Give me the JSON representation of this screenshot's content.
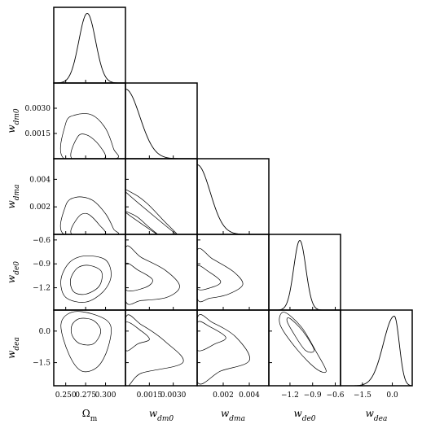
{
  "chart_data": {
    "type": "corner",
    "parameters": [
      {
        "id": "om",
        "label": "Ω",
        "sub": "m",
        "italic": false,
        "range": [
          0.235,
          0.325
        ]
      },
      {
        "id": "wdm0",
        "label": "w",
        "sub": "dm0",
        "italic": true,
        "range": [
          0.0,
          0.0045
        ]
      },
      {
        "id": "wdma",
        "label": "w",
        "sub": "dma",
        "italic": true,
        "range": [
          0.0,
          0.0055
        ]
      },
      {
        "id": "wde0",
        "label": "w",
        "sub": "de0",
        "italic": true,
        "range": [
          -1.48,
          -0.53
        ]
      },
      {
        "id": "wdea",
        "label": "w",
        "sub": "dea",
        "italic": true,
        "range": [
          -2.6,
          1.0
        ]
      }
    ],
    "x_ticks": {
      "om": [
        "0.250",
        "0.275",
        "0.300"
      ],
      "wdm0": [
        "0.0015",
        "0.0030"
      ],
      "wdma": [
        "0.002",
        "0.004"
      ],
      "wde0": [
        "-1.2",
        "-0.9",
        "-0.6"
      ],
      "wdea": [
        "-1.5",
        "0.0"
      ]
    },
    "y_ticks": {
      "wdm0": [
        "0.0015",
        "0.0030"
      ],
      "wdma": [
        "0.002",
        "0.004"
      ],
      "wde0": [
        "-1.2",
        "-0.9",
        "-0.6"
      ],
      "wdea": [
        "-1.5",
        "0.0"
      ]
    },
    "marginals": [
      {
        "param": "om",
        "shape": "gaussian",
        "center": 0.277,
        "sigma": 0.0105
      },
      {
        "param": "wdm0",
        "shape": "half-decay",
        "scale": 0.0009
      },
      {
        "param": "wdma",
        "shape": "half-decay",
        "scale": 0.001
      },
      {
        "param": "wde0",
        "shape": "gaussian",
        "center": -1.07,
        "sigma": 0.08
      },
      {
        "param": "wdea",
        "shape": "skewed",
        "center": 0.1,
        "sigma_left": 0.55,
        "sigma_right": 0.25
      }
    ],
    "contours_2d": [
      {
        "x": "om",
        "y": "wdm0",
        "levels": [
          [
            [
              0.248,
              0
            ],
            [
              0.25,
              0.0021
            ],
            [
              0.262,
              0.0026
            ],
            [
              0.283,
              0.0026
            ],
            [
              0.3,
              0.0018
            ],
            [
              0.31,
              0.0006
            ],
            [
              0.312,
              0
            ]
          ],
          [
            [
              0.258,
              0
            ],
            [
              0.265,
              0.0013
            ],
            [
              0.277,
              0.0014
            ],
            [
              0.292,
              0.0008
            ],
            [
              0.298,
              0
            ]
          ]
        ]
      },
      {
        "x": "om",
        "y": "wdma",
        "levels": [
          [
            [
              0.248,
              0
            ],
            [
              0.25,
              0.0021
            ],
            [
              0.263,
              0.0027
            ],
            [
              0.283,
              0.0025
            ],
            [
              0.3,
              0.0015
            ],
            [
              0.31,
              0.0004
            ],
            [
              0.312,
              0
            ]
          ],
          [
            [
              0.258,
              0
            ],
            [
              0.265,
              0.0012
            ],
            [
              0.277,
              0.0015
            ],
            [
              0.292,
              0.0007
            ],
            [
              0.298,
              0
            ]
          ]
        ]
      },
      {
        "x": "om",
        "y": "wde0",
        "levels": [
          [
            [
              0.244,
              -1.1
            ],
            [
              0.255,
              -0.88
            ],
            [
              0.275,
              -0.8
            ],
            [
              0.3,
              -0.85
            ],
            [
              0.307,
              -1.05
            ],
            [
              0.297,
              -1.25
            ],
            [
              0.275,
              -1.38
            ],
            [
              0.25,
              -1.32
            ]
          ],
          [
            [
              0.256,
              -1.1
            ],
            [
              0.265,
              -0.95
            ],
            [
              0.28,
              -0.92
            ],
            [
              0.295,
              -1.0
            ],
            [
              0.292,
              -1.18
            ],
            [
              0.275,
              -1.28
            ],
            [
              0.26,
              -1.25
            ]
          ]
        ]
      },
      {
        "x": "om",
        "y": "wdea",
        "levels": [
          [
            [
              0.244,
              0.3
            ],
            [
              0.258,
              0.9
            ],
            [
              0.285,
              0.8
            ],
            [
              0.306,
              0.3
            ],
            [
              0.303,
              -0.8
            ],
            [
              0.29,
              -1.7
            ],
            [
              0.27,
              -1.9
            ],
            [
              0.254,
              -1.1
            ]
          ],
          [
            [
              0.258,
              0.3
            ],
            [
              0.268,
              0.6
            ],
            [
              0.285,
              0.5
            ],
            [
              0.294,
              0.0
            ],
            [
              0.285,
              -0.6
            ],
            [
              0.268,
              -0.6
            ],
            [
              0.258,
              -0.2
            ]
          ]
        ]
      },
      {
        "x": "wdm0",
        "y": "wdma",
        "levels": [
          [
            [
              0,
              0.0031
            ],
            [
              0.0006,
              0.0029
            ],
            [
              0.0014,
              0.0022
            ],
            [
              0.0024,
              0.001
            ],
            [
              0.0032,
              0
            ]
          ],
          [
            [
              0,
              0.0016
            ],
            [
              0.0007,
              0.0013
            ],
            [
              0.0014,
              0.0006
            ],
            [
              0.002,
              0
            ]
          ]
        ]
      },
      {
        "x": "wdm0",
        "y": "wde0",
        "levels": [
          [
            [
              0,
              -0.7
            ],
            [
              0.001,
              -0.82
            ],
            [
              0.0025,
              -0.98
            ],
            [
              0.0034,
              -1.18
            ],
            [
              0.0026,
              -1.32
            ],
            [
              0.001,
              -1.36
            ],
            [
              0,
              -1.36
            ]
          ],
          [
            [
              0,
              -0.9
            ],
            [
              0.0008,
              -0.98
            ],
            [
              0.0017,
              -1.1
            ],
            [
              0.0012,
              -1.2
            ],
            [
              0,
              -1.22
            ]
          ]
        ]
      },
      {
        "x": "wdm0",
        "y": "wdea",
        "levels": [
          [
            [
              0,
              0.6
            ],
            [
              0.001,
              0.3
            ],
            [
              0.0025,
              -0.5
            ],
            [
              0.0036,
              -1.5
            ],
            [
              0.001,
              -2.0
            ],
            [
              0,
              -2.5
            ]
          ],
          [
            [
              0,
              0.4
            ],
            [
              0.001,
              0.0
            ],
            [
              0.0015,
              -0.4
            ],
            [
              0.0008,
              -0.6
            ],
            [
              0,
              -0.9
            ]
          ]
        ]
      },
      {
        "x": "wdma",
        "y": "wde0",
        "levels": [
          [
            [
              0,
              -0.73
            ],
            [
              0.0012,
              -0.84
            ],
            [
              0.0028,
              -1.0
            ],
            [
              0.0035,
              -1.16
            ],
            [
              0.0024,
              -1.28
            ],
            [
              0.001,
              -1.33
            ],
            [
              0,
              -1.33
            ]
          ],
          [
            [
              0,
              -0.93
            ],
            [
              0.0009,
              -1.0
            ],
            [
              0.0018,
              -1.12
            ],
            [
              0.0012,
              -1.19
            ],
            [
              0,
              -1.21
            ]
          ]
        ]
      },
      {
        "x": "wdma",
        "y": "wdea",
        "levels": [
          [
            [
              0,
              0.6
            ],
            [
              0.0012,
              0.4
            ],
            [
              0.003,
              -0.3
            ],
            [
              0.004,
              -1.4
            ],
            [
              0.0018,
              -1.9
            ],
            [
              0,
              -2.4
            ]
          ],
          [
            [
              0,
              0.4
            ],
            [
              0.001,
              0.2
            ],
            [
              0.0022,
              -0.3
            ],
            [
              0.0014,
              -0.6
            ],
            [
              0,
              -0.9
            ]
          ]
        ]
      },
      {
        "x": "wde0",
        "y": "wdea",
        "levels": [
          [
            [
              -1.28,
              0.9
            ],
            [
              -1.05,
              0.2
            ],
            [
              -0.85,
              -1.0
            ],
            [
              -0.72,
              -1.9
            ],
            [
              -0.85,
              -1.8
            ],
            [
              -1.1,
              -0.9
            ],
            [
              -1.33,
              0.3
            ]
          ],
          [
            [
              -1.2,
              0.6
            ],
            [
              -1.03,
              0.0
            ],
            [
              -0.88,
              -0.9
            ],
            [
              -1.0,
              -0.9
            ],
            [
              -1.17,
              0.0
            ],
            [
              -1.24,
              0.5
            ]
          ]
        ]
      }
    ]
  }
}
